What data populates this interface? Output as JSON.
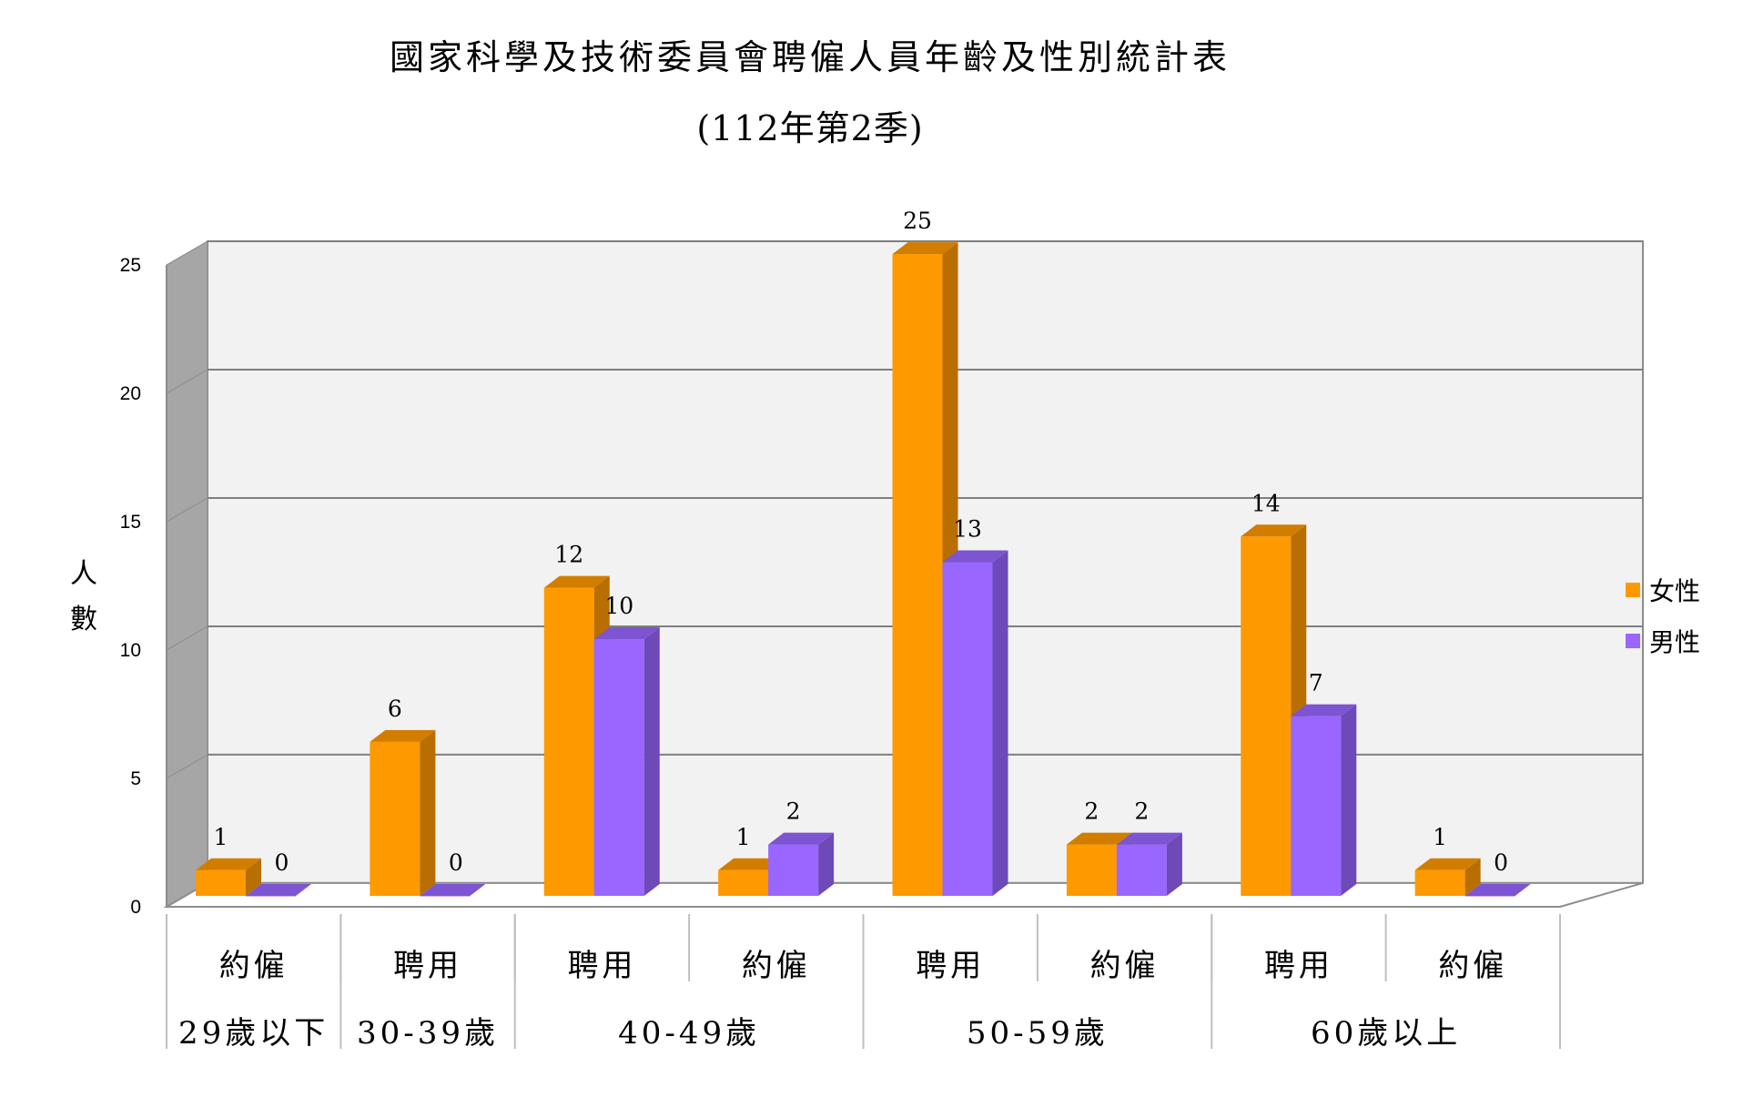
{
  "chart_data": {
    "type": "bar",
    "title": "國家科學及技術委員會聘僱人員年齡及性別統計表",
    "subtitle": "(112年第2季)",
    "ylabel": "人\n數",
    "ylim": [
      0,
      25
    ],
    "yticks": [
      0,
      5,
      10,
      15,
      20,
      25
    ],
    "grid": true,
    "legend_position": "right",
    "categories": [
      "約僱",
      "聘用",
      "聘用",
      "約僱",
      "聘用",
      "約僱",
      "聘用",
      "約僱"
    ],
    "age_groups": [
      {
        "label": "29歲以下",
        "span": 1
      },
      {
        "label": "30-39歲",
        "span": 1
      },
      {
        "label": "40-49歲",
        "span": 2
      },
      {
        "label": "50-59歲",
        "span": 2
      },
      {
        "label": "60歲以上",
        "span": 2
      }
    ],
    "series": [
      {
        "name": "女性",
        "color": "#FF9900",
        "values": [
          1,
          6,
          12,
          1,
          25,
          2,
          14,
          1
        ]
      },
      {
        "name": "男性",
        "color": "#9966FF",
        "values": [
          0,
          0,
          10,
          2,
          13,
          2,
          7,
          0
        ]
      }
    ]
  }
}
